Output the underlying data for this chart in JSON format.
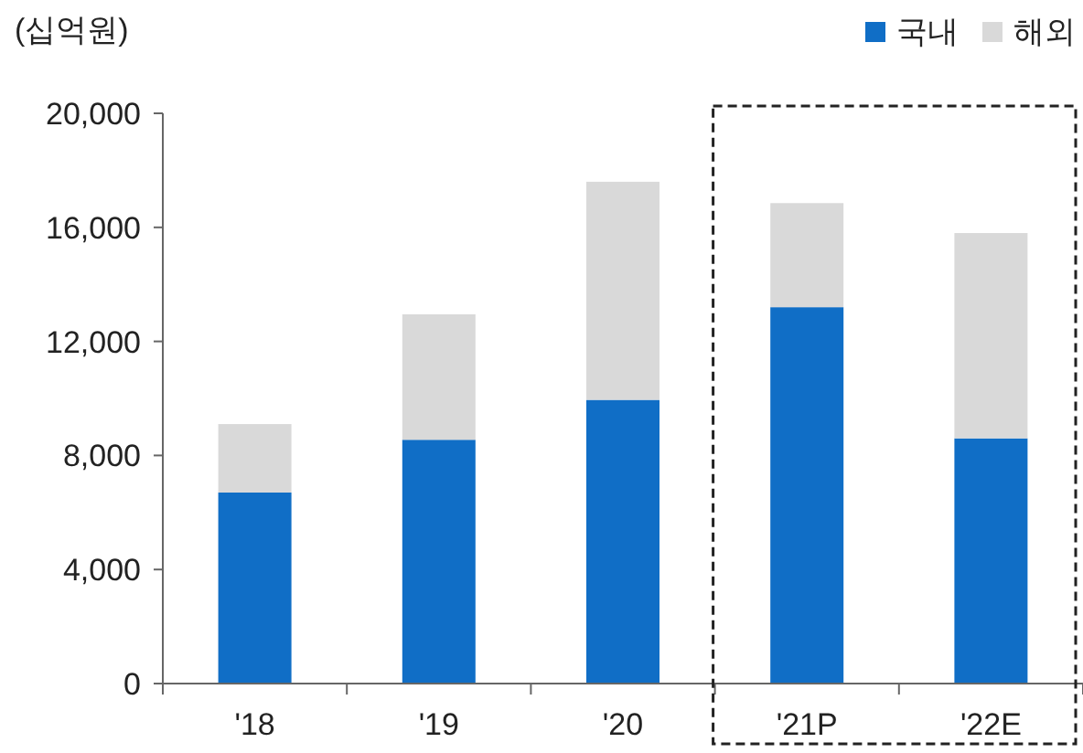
{
  "chart_data": {
    "type": "bar",
    "ylabel": "(십억원)",
    "stacked": true,
    "categories": [
      "'18",
      "'19",
      "'20",
      "'21P",
      "'22E"
    ],
    "series": [
      {
        "name": "국내",
        "color": "#106ec6",
        "values": [
          6700,
          8550,
          9950,
          13200,
          8600
        ]
      },
      {
        "name": "해외",
        "color": "#d9d9d9",
        "values": [
          2400,
          4400,
          7650,
          3650,
          7200
        ]
      }
    ],
    "ylim": [
      0,
      20000
    ],
    "yticks": [
      {
        "value": 0,
        "label": "0"
      },
      {
        "value": 4000,
        "label": "4,000"
      },
      {
        "value": 8000,
        "label": "8,000"
      },
      {
        "value": 12000,
        "label": "12,000"
      },
      {
        "value": 16000,
        "label": "16,000"
      },
      {
        "value": 20000,
        "label": "20,000"
      }
    ],
    "grid": false,
    "legend": "top right"
  }
}
